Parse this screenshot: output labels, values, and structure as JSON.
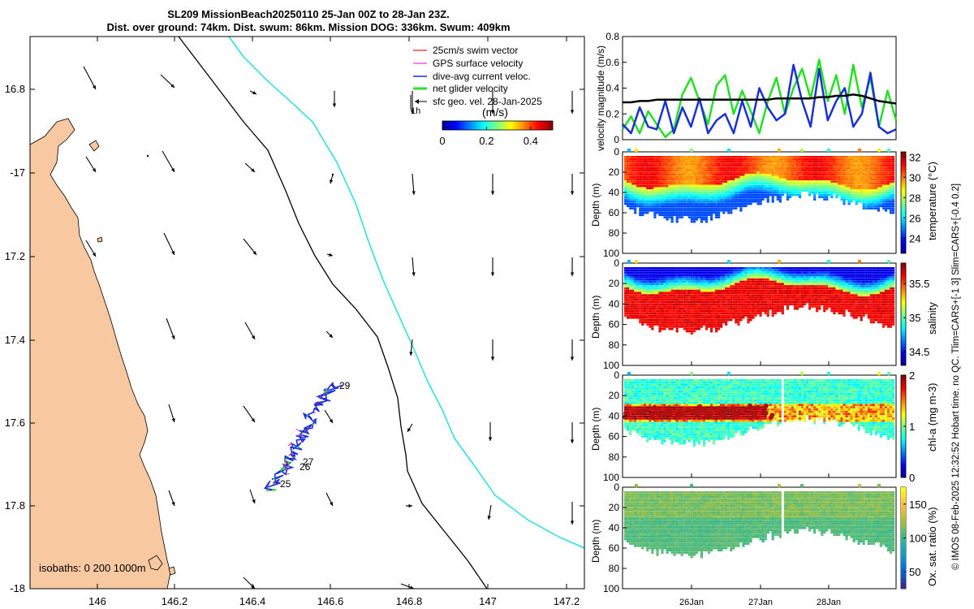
{
  "title": {
    "line1": "SL209 MissionBeach20250110 25-Jan 00Z to 28-Jan 23Z.",
    "line2": "Dist. over ground: 74km. Dist. swum: 86km. Mission DOG: 336km. Swum: 409km"
  },
  "map": {
    "lon_ticks": [
      "146",
      "146.2",
      "146.4",
      "146.6",
      "146.8",
      "147",
      "147.2"
    ],
    "lat_ticks": [
      "16.8",
      "-17",
      "17.2",
      "17.4",
      "17.6",
      "17.8",
      "-18"
    ],
    "xlim": [
      145.83,
      147.23
    ],
    "ylim": [
      -18.0,
      -16.67
    ],
    "isobaths_label": "isobaths: 0   200  1000m",
    "day_labels": [
      "29",
      "27",
      "26",
      "25"
    ],
    "scale_label": "1h",
    "legend": [
      {
        "label": "25cm/s swim vector",
        "color": "#e8202a"
      },
      {
        "label": "GPS surface velocity",
        "color": "#e040e0"
      },
      {
        "label": "dive-avg current veloc.",
        "color": "#1a2fd8"
      },
      {
        "label": "net glider velocity",
        "color": "#2fe02f"
      },
      {
        "label": "sfc geo. vel. 28-Jan-2025",
        "color": "#000000"
      }
    ],
    "colorbar": {
      "unit": "(m/s)",
      "ticks": [
        "0",
        "0.2",
        "0.4"
      ],
      "range": [
        0,
        0.5
      ]
    },
    "colors": {
      "land": "#f8c8a0",
      "isobath_200": "#000000",
      "isobath_1000": "#22e0e0",
      "track": "#1a2fd8"
    }
  },
  "velocity_panel": {
    "ylabel": "velocity magnitude (m/s)",
    "yticks": [
      "0",
      "0.2",
      "0.4",
      "0.6",
      "0.8"
    ],
    "ylim": [
      0,
      0.8
    ],
    "series": [
      {
        "name": "net glider velocity",
        "color": "#22e022",
        "values": [
          0.08,
          0.18,
          0.05,
          0.22,
          0.12,
          0.02,
          0.08,
          0.35,
          0.48,
          0.3,
          0.12,
          0.42,
          0.5,
          0.2,
          0.38,
          0.22,
          0.05,
          0.3,
          0.48,
          0.2,
          0.4,
          0.55,
          0.32,
          0.62,
          0.3,
          0.5,
          0.2,
          0.58,
          0.25,
          0.48,
          0.1,
          0.38,
          0.15
        ]
      },
      {
        "name": "dive-avg current veloc.",
        "color": "#1a2fd8",
        "values": [
          0.12,
          0.05,
          0.25,
          0.1,
          0.08,
          0.3,
          0.05,
          0.25,
          0.1,
          0.32,
          0.05,
          0.15,
          0.2,
          0.05,
          0.3,
          0.1,
          0.4,
          0.25,
          0.15,
          0.2,
          0.58,
          0.3,
          0.1,
          0.55,
          0.15,
          0.3,
          0.4,
          0.1,
          0.2,
          0.52,
          0.1,
          0.05,
          0.08
        ]
      },
      {
        "name": "sfc geo. vel.",
        "color": "#000000",
        "values": [
          0.29,
          0.29,
          0.3,
          0.3,
          0.31,
          0.31,
          0.31,
          0.31,
          0.31,
          0.31,
          0.31,
          0.31,
          0.31,
          0.31,
          0.31,
          0.31,
          0.31,
          0.31,
          0.32,
          0.32,
          0.32,
          0.32,
          0.32,
          0.33,
          0.33,
          0.34,
          0.34,
          0.35,
          0.34,
          0.32,
          0.3,
          0.29,
          0.28
        ]
      }
    ]
  },
  "profile_panels": [
    {
      "ylabel": "Depth (m)",
      "cb_label": "temperature (°C)",
      "cb_ticks": [
        "32",
        "30",
        "28",
        "26",
        "24"
      ],
      "cb_range": [
        22.5,
        32.5
      ],
      "kind": "temperature"
    },
    {
      "ylabel": "Depth (m)",
      "cb_label": "salinity",
      "cb_ticks": [
        "35.5",
        "35",
        "34.5"
      ],
      "cb_range": [
        34.3,
        35.8
      ],
      "kind": "salinity"
    },
    {
      "ylabel": "Depth (m)",
      "cb_label": "chl-a (mg m-3)",
      "cb_ticks": [
        "2",
        "1",
        "0"
      ],
      "cb_range": [
        0,
        2
      ],
      "kind": "chla"
    },
    {
      "ylabel": "Depth (m)",
      "cb_label": "Ox. sat. ratio (%)",
      "cb_ticks": [
        "150",
        "100",
        "50"
      ],
      "cb_range": [
        25,
        175
      ],
      "kind": "oxygen"
    }
  ],
  "depth_ticks": [
    "0",
    "20",
    "40",
    "60",
    "80",
    "100"
  ],
  "time_ticks": [
    "26Jan",
    "27Jan",
    "28Jan"
  ],
  "side_note": "© IMOS 08-Feb-2025 12:32:52 Hobart time. no QC. Tlim=CARS+[-1 3] Slim=CARS+[-0.4 0.2]"
}
